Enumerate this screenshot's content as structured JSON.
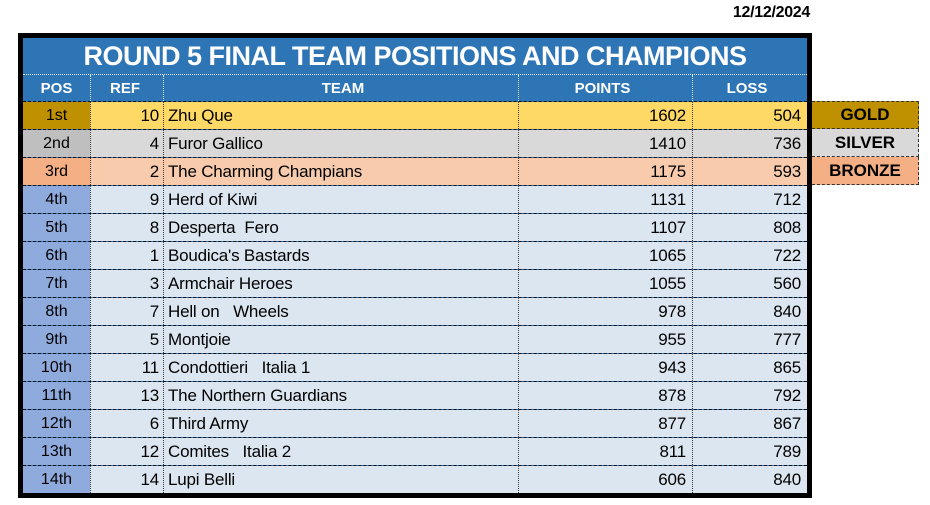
{
  "date": "12/12/2024",
  "colors": {
    "header_blue": "#2E75B6",
    "row_blue": "#DCE6F1",
    "pos_blue": "#8FAADC",
    "gold_dark": "#BF9000",
    "gold_light": "#FFD966",
    "silver_dark": "#BFBFBF",
    "silver_light": "#D9D9D9",
    "bronze_dark": "#F4B084",
    "bronze_light": "#F8CBAD",
    "border_black": "#000000"
  },
  "table": {
    "title": "ROUND 5 FINAL TEAM POSITIONS AND CHAMPIONS",
    "columns": {
      "pos": "POS",
      "ref": "REF",
      "team": "TEAM",
      "points": "POINTS",
      "loss": "LOSS"
    },
    "rows": [
      {
        "pos": "1st",
        "ref": "10",
        "team": "Zhu Que",
        "points": "1602",
        "loss": "504",
        "medal": "GOLD"
      },
      {
        "pos": "2nd",
        "ref": "4",
        "team": "Furor Gallico",
        "points": "1410",
        "loss": "736",
        "medal": "SILVER"
      },
      {
        "pos": "3rd",
        "ref": "2",
        "team": "The Charming Champians",
        "points": "1175",
        "loss": "593",
        "medal": "BRONZE"
      },
      {
        "pos": "4th",
        "ref": "9",
        "team": "Herd of Kiwi",
        "points": "1131",
        "loss": "712",
        "medal": ""
      },
      {
        "pos": "5th",
        "ref": "8",
        "team": "Desperta  Fero",
        "points": "1107",
        "loss": "808",
        "medal": ""
      },
      {
        "pos": "6th",
        "ref": "1",
        "team": "Boudica's Bastards",
        "points": "1065",
        "loss": "722",
        "medal": ""
      },
      {
        "pos": "7th",
        "ref": "3",
        "team": "Armchair Heroes",
        "points": "1055",
        "loss": "560",
        "medal": ""
      },
      {
        "pos": "8th",
        "ref": "7",
        "team": "Hell on   Wheels",
        "points": "978",
        "loss": "840",
        "medal": ""
      },
      {
        "pos": "9th",
        "ref": "5",
        "team": "Montjoie",
        "points": "955",
        "loss": "777",
        "medal": ""
      },
      {
        "pos": "10th",
        "ref": "11",
        "team": "Condottieri   Italia 1",
        "points": "943",
        "loss": "865",
        "medal": ""
      },
      {
        "pos": "11th",
        "ref": "13",
        "team": "The Northern Guardians",
        "points": "878",
        "loss": "792",
        "medal": ""
      },
      {
        "pos": "12th",
        "ref": "6",
        "team": "Third Army",
        "points": "877",
        "loss": "867",
        "medal": ""
      },
      {
        "pos": "13th",
        "ref": "12",
        "team": "Comites   Italia 2",
        "points": "811",
        "loss": "789",
        "medal": ""
      },
      {
        "pos": "14th",
        "ref": "14",
        "team": "Lupi Belli",
        "points": "606",
        "loss": "840",
        "medal": ""
      }
    ]
  }
}
